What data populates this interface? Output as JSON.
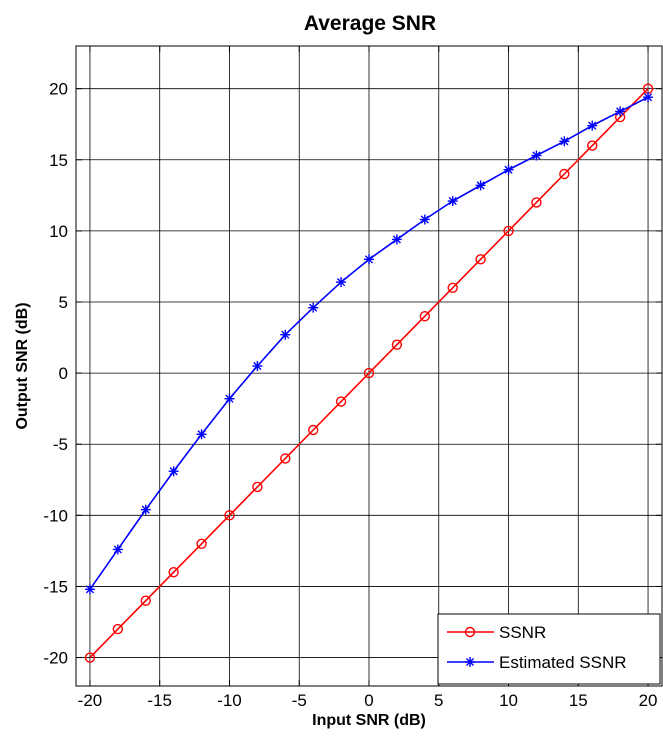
{
  "chart_data": {
    "type": "line",
    "title": "Average SNR",
    "xlabel": "Input SNR (dB)",
    "ylabel": "Output SNR (dB)",
    "xlim": [
      -21,
      21
    ],
    "ylim": [
      -22,
      23
    ],
    "xticks": [
      -20,
      -15,
      -10,
      -5,
      0,
      5,
      10,
      15,
      20
    ],
    "yticks": [
      -20,
      -15,
      -10,
      -5,
      0,
      5,
      10,
      15,
      20
    ],
    "grid": true,
    "legend_position": "bottom-right",
    "x": [
      -20,
      -18,
      -16,
      -14,
      -12,
      -10,
      -8,
      -6,
      -4,
      -2,
      0,
      2,
      4,
      6,
      8,
      10,
      12,
      14,
      16,
      18,
      20
    ],
    "series": [
      {
        "name": "SSNR",
        "color": "#ff0000",
        "marker": "circle",
        "values": [
          -20,
          -18,
          -16,
          -14,
          -12,
          -10,
          -8,
          -6,
          -4,
          -2,
          0,
          2,
          4,
          6,
          8,
          10,
          12,
          14,
          16,
          18,
          20
        ]
      },
      {
        "name": "Estimated SSNR",
        "color": "#0000ff",
        "marker": "star",
        "values": [
          -15.2,
          -12.4,
          -9.6,
          -6.9,
          -4.3,
          -1.8,
          0.5,
          2.7,
          4.6,
          6.4,
          8.0,
          9.4,
          10.8,
          12.1,
          13.2,
          14.3,
          15.3,
          16.3,
          17.4,
          18.4,
          19.4
        ]
      }
    ]
  }
}
